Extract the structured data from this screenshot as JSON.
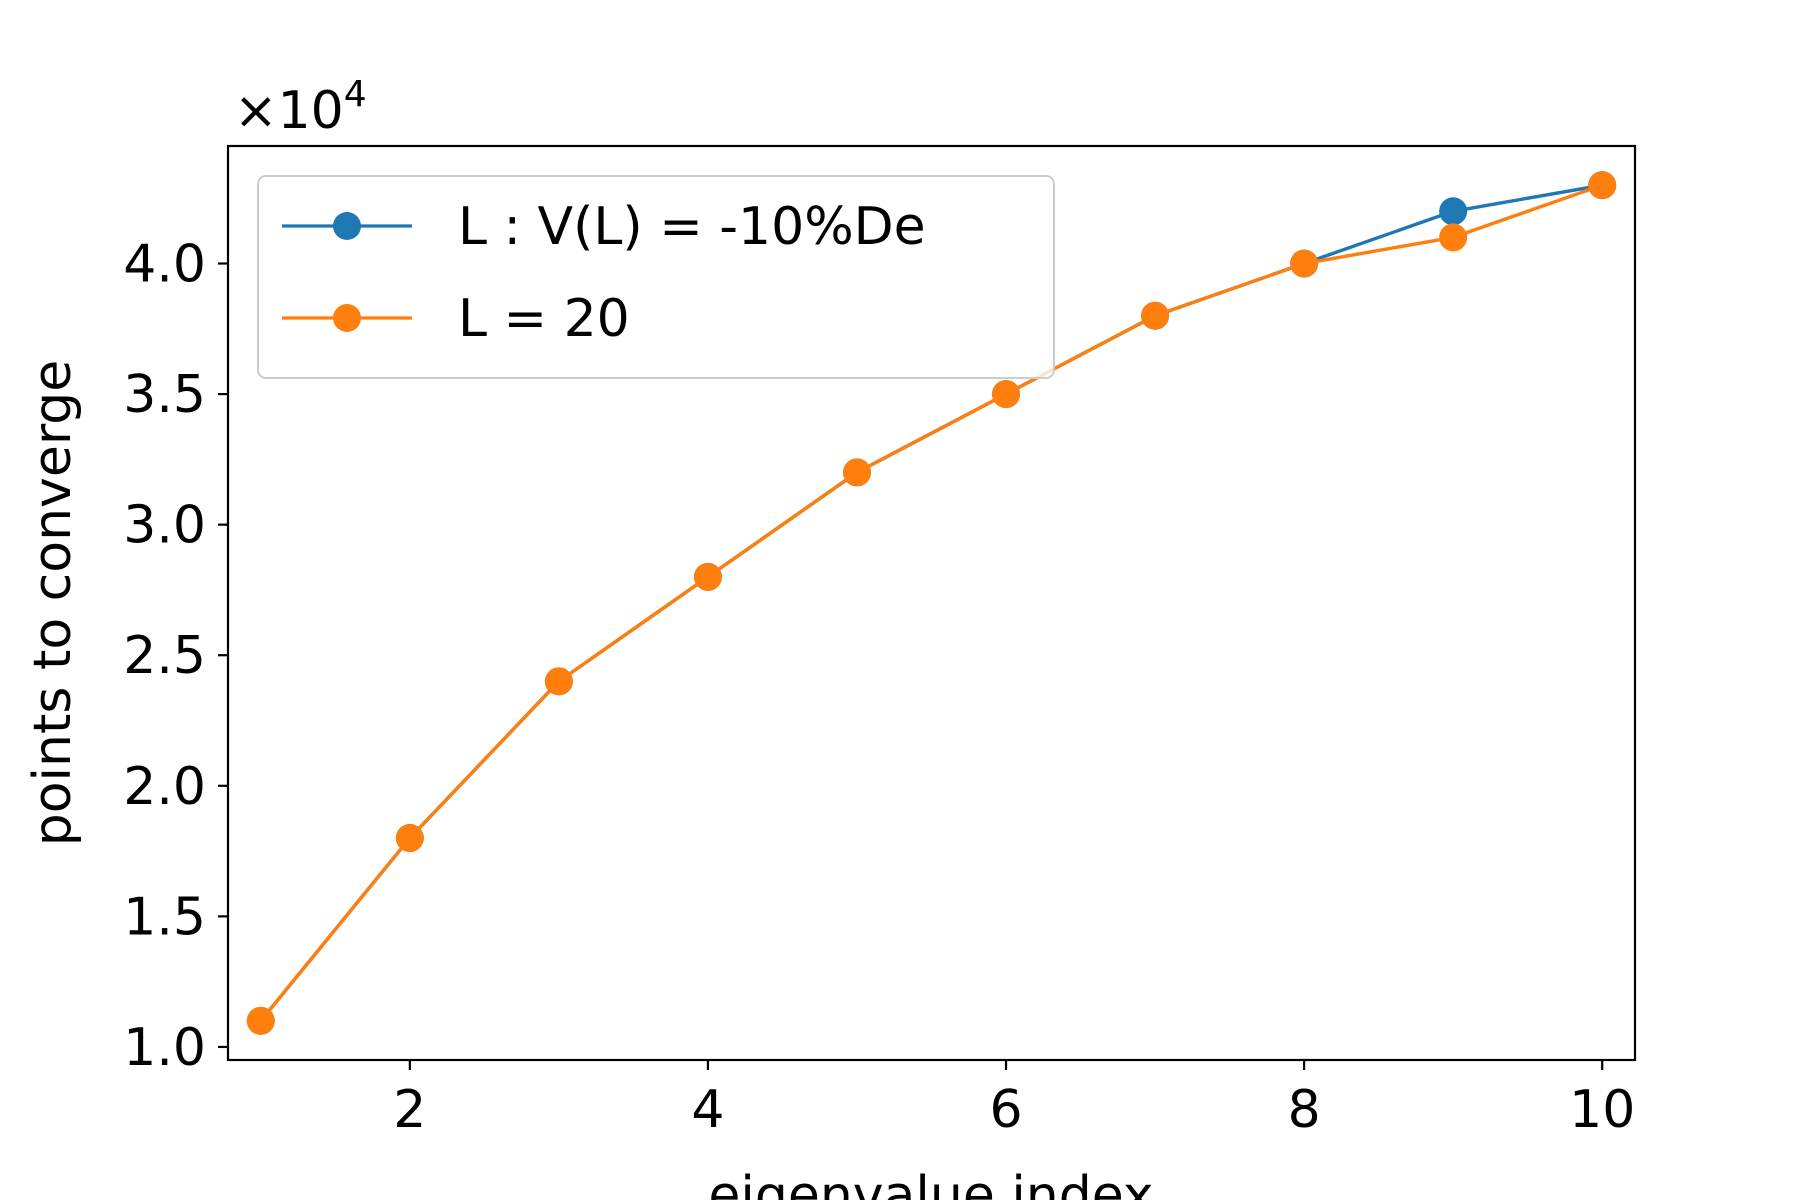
{
  "chart_data": {
    "type": "line",
    "title": "",
    "xlabel": "eigenvalue index",
    "ylabel": "points to converge",
    "y_offset_label": "×10",
    "y_offset_exponent": "4",
    "xlim": [
      0.78,
      10.22
    ],
    "ylim": [
      0.95,
      4.45
    ],
    "xticks": [
      2,
      4,
      6,
      8,
      10
    ],
    "xtick_labels": [
      "2",
      "4",
      "6",
      "8",
      "10"
    ],
    "yticks": [
      1.0,
      1.5,
      2.0,
      2.5,
      3.0,
      3.5,
      4.0
    ],
    "ytick_labels": [
      "1.0",
      "1.5",
      "2.0",
      "2.5",
      "3.0",
      "3.5",
      "4.0"
    ],
    "grid": false,
    "legend_position": "top-left",
    "x": [
      1,
      2,
      3,
      4,
      5,
      6,
      7,
      8,
      9,
      10
    ],
    "series": [
      {
        "name": "L : V(L) = -10%De",
        "color": "#1f77b4",
        "values": [
          1.1,
          1.8,
          2.4,
          2.8,
          3.2,
          3.5,
          3.8,
          4.0,
          4.2,
          4.3
        ]
      },
      {
        "name": "L = 20",
        "color": "#ff7f0e",
        "values": [
          1.1,
          1.8,
          2.4,
          2.8,
          3.2,
          3.5,
          3.8,
          4.0,
          4.1,
          4.3
        ]
      }
    ]
  }
}
